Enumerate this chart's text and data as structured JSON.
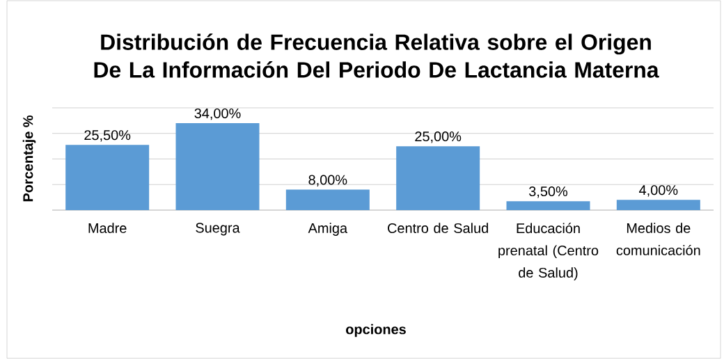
{
  "chart_data": {
    "type": "bar",
    "title": "Distribución de Frecuencia Relativa sobre el Origen De La Información Del Periodo De Lactancia Materna",
    "xlabel": "opciones",
    "ylabel": "Porcentaje %",
    "categories": [
      "Madre",
      "Suegra",
      "Amiga",
      "Centro de Salud",
      "Educación prenatal (Centro de Salud)",
      "Medios de comunicación"
    ],
    "values": [
      25.5,
      34,
      8,
      25,
      3.5,
      4
    ],
    "value_labels": [
      "25,50%",
      "34,00%",
      "8,00%",
      "25,00%",
      "3,50%",
      "4,00%"
    ],
    "color": "#5b9bd5",
    "ylim": [
      0,
      40
    ],
    "yticks": [
      {
        "value": 0,
        "label": null
      },
      {
        "value": 10,
        "label": null
      },
      {
        "value": 20,
        "label": null
      },
      {
        "value": 30,
        "label": null
      },
      {
        "value": 40,
        "label": null
      }
    ],
    "grid": "y"
  }
}
